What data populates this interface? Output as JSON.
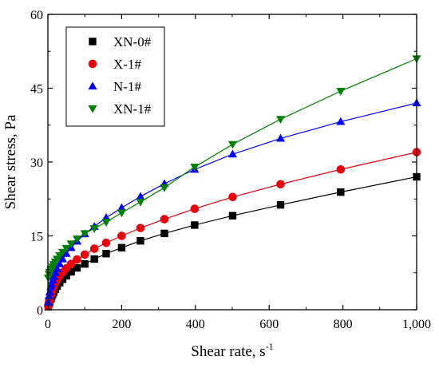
{
  "chart_data": {
    "type": "scatter",
    "xlabel": "Shear rate, s",
    "xlabel_sup": "-1",
    "ylabel": "Shear stress, Pa",
    "xlim": [
      0,
      1000
    ],
    "ylim": [
      0,
      60
    ],
    "x_ticks": [
      0,
      200,
      400,
      600,
      800,
      1000
    ],
    "x_tick_labels": [
      "0",
      "200",
      "400",
      "600",
      "800",
      "1,000"
    ],
    "y_ticks": [
      0,
      15,
      30,
      45,
      60
    ],
    "y_tick_labels": [
      "0",
      "15",
      "30",
      "45",
      "60"
    ],
    "grid": false,
    "legend_position": "top-left",
    "series": [
      {
        "name": "XN-0#",
        "marker": "square",
        "color": "#000000",
        "x": [
          1,
          3,
          5,
          8,
          10,
          13,
          16,
          20,
          25,
          32,
          40,
          50,
          63,
          79,
          100,
          126,
          158,
          200,
          251,
          316,
          398,
          501,
          631,
          794,
          1000
        ],
        "y": [
          0.6,
          1.2,
          1.6,
          2.2,
          2.6,
          3.1,
          3.6,
          4.2,
          4.8,
          5.5,
          6.2,
          6.9,
          7.7,
          8.5,
          9.3,
          10.3,
          11.4,
          12.6,
          14.0,
          15.5,
          17.2,
          19.1,
          21.3,
          23.9,
          27.0
        ]
      },
      {
        "name": "X-1#",
        "marker": "circle",
        "color": "#e8000b",
        "x": [
          1,
          3,
          5,
          8,
          10,
          13,
          16,
          20,
          25,
          32,
          40,
          50,
          63,
          79,
          100,
          126,
          158,
          200,
          251,
          316,
          398,
          501,
          631,
          794,
          1000
        ],
        "y": [
          0.7,
          1.6,
          2.2,
          3.0,
          3.5,
          4.1,
          4.7,
          5.4,
          6.1,
          6.9,
          7.6,
          8.4,
          9.3,
          10.2,
          11.2,
          12.4,
          13.6,
          15.0,
          16.6,
          18.4,
          20.5,
          22.9,
          25.5,
          28.5,
          32.0
        ]
      },
      {
        "name": "N-1#",
        "marker": "triangle-up",
        "color": "#0000ff",
        "x": [
          1,
          3,
          5,
          8,
          10,
          13,
          16,
          20,
          25,
          32,
          40,
          50,
          63,
          79,
          100,
          126,
          158,
          200,
          251,
          316,
          398,
          501,
          631,
          794,
          1000
        ],
        "y": [
          1.5,
          2.8,
          3.6,
          4.6,
          5.2,
          6.0,
          6.7,
          7.5,
          8.3,
          9.3,
          10.3,
          11.4,
          12.6,
          13.9,
          15.4,
          16.9,
          18.7,
          20.7,
          23.0,
          25.6,
          28.5,
          31.6,
          34.8,
          38.2,
          42.0
        ]
      },
      {
        "name": "XN-1#",
        "marker": "triangle-down",
        "color": "#008000",
        "x": [
          1,
          3,
          5,
          8,
          10,
          13,
          16,
          20,
          25,
          32,
          40,
          50,
          63,
          79,
          100,
          126,
          158,
          200,
          251,
          316,
          398,
          501,
          631,
          794,
          1000
        ],
        "y": [
          6.5,
          7.2,
          7.6,
          8.0,
          8.3,
          8.7,
          9.2,
          9.7,
          10.3,
          11.0,
          11.7,
          12.5,
          13.4,
          14.4,
          15.5,
          16.5,
          17.8,
          19.7,
          21.9,
          24.8,
          29.0,
          33.6,
          38.7,
          44.4,
          51.0
        ]
      }
    ]
  }
}
